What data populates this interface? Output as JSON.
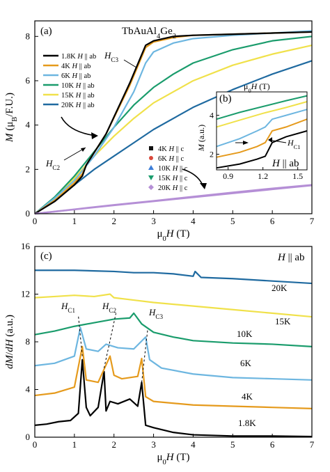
{
  "chart_data": [
    {
      "panel": "(a)",
      "type": "line",
      "title": "TbAuAl4Ge2",
      "xlabel": "μ0H (T)",
      "ylabel": "M (μB/F.U.)",
      "xlim": [
        0,
        7
      ],
      "ylim": [
        0,
        8.7
      ],
      "xticks": [
        "0",
        "1",
        "2",
        "3",
        "4",
        "5",
        "6",
        "7"
      ],
      "yticks": [
        "0",
        "2",
        "4",
        "6",
        "8"
      ],
      "legend_position": "upper-left",
      "legend_ab": [
        "1.8K H || ab",
        "4K H || ab",
        "6K H || ab",
        "10K H || ab",
        "15K H || ab",
        "20K H || ab"
      ],
      "legend_c": [
        "4K H || c",
        "6K H || c",
        "10K H || c",
        "15K H || c",
        "20K H || c"
      ],
      "annotations": [
        "HC3",
        "HC2"
      ],
      "colors": {
        "1.8K": "#000000",
        "4K": "#e59a1c",
        "6K": "#6db6e0",
        "10K": "#1a9c6c",
        "15K": "#f0e14a",
        "20K": "#1f6aa0",
        "c_series": "#b58fd6"
      },
      "series": [
        {
          "name": "1.8K H || ab",
          "x": [
            0,
            0.5,
            1.0,
            1.2,
            1.3,
            1.8,
            2.4,
            2.8,
            3.0,
            3.5,
            4,
            5,
            6,
            7
          ],
          "y": [
            0,
            0.55,
            1.3,
            1.7,
            2.2,
            3.6,
            5.9,
            7.6,
            7.8,
            8.0,
            8.05,
            8.1,
            8.15,
            8.2
          ]
        },
        {
          "name": "4K H || ab",
          "x": [
            0,
            0.5,
            1.0,
            1.2,
            1.3,
            1.8,
            2.4,
            2.8,
            3.0,
            3.5,
            4,
            5,
            6,
            7
          ],
          "y": [
            0,
            0.6,
            1.4,
            1.8,
            2.2,
            3.6,
            5.8,
            7.5,
            7.75,
            7.95,
            8.05,
            8.1,
            8.15,
            8.2
          ]
        },
        {
          "name": "6K H || ab",
          "x": [
            0,
            0.5,
            1.0,
            1.5,
            2,
            2.5,
            2.8,
            3,
            3.5,
            4,
            5,
            6,
            7
          ],
          "y": [
            0,
            0.7,
            1.5,
            2.6,
            3.9,
            5.5,
            6.8,
            7.3,
            7.7,
            7.9,
            8.05,
            8.15,
            8.25
          ]
        },
        {
          "name": "10K H || ab",
          "x": [
            0,
            0.5,
            1,
            1.5,
            2,
            2.5,
            3,
            3.5,
            4,
            5,
            6,
            7
          ],
          "y": [
            0,
            0.75,
            1.7,
            2.8,
            3.9,
            4.9,
            5.7,
            6.3,
            6.8,
            7.4,
            7.8,
            8.0
          ]
        },
        {
          "name": "15K H || ab",
          "x": [
            0,
            0.5,
            1,
            1.5,
            2,
            2.5,
            3,
            4,
            5,
            6,
            7
          ],
          "y": [
            0,
            0.7,
            1.6,
            2.6,
            3.5,
            4.3,
            5.0,
            6.0,
            6.7,
            7.2,
            7.6
          ]
        },
        {
          "name": "20K H || ab",
          "x": [
            0,
            0.5,
            1,
            1.5,
            2,
            2.5,
            3,
            4,
            5,
            6,
            7
          ],
          "y": [
            0,
            0.6,
            1.3,
            2.0,
            2.6,
            3.2,
            3.8,
            4.8,
            5.6,
            6.3,
            6.9
          ]
        },
        {
          "name": "4K H || c",
          "x": [
            0,
            1,
            2,
            3,
            4,
            5,
            6,
            7
          ],
          "y": [
            0,
            0.2,
            0.4,
            0.58,
            0.77,
            0.96,
            1.14,
            1.3
          ]
        },
        {
          "name": "20K H || c",
          "x": [
            0,
            1,
            2,
            3,
            4,
            5,
            6,
            7
          ],
          "y": [
            0,
            0.19,
            0.38,
            0.56,
            0.74,
            0.92,
            1.1,
            1.28
          ]
        }
      ],
      "inset": {
        "panel": "(b)",
        "xlabel": "μ0H (T)",
        "ylabel": "M (a.u.)",
        "label": "H || ab",
        "annotation": "HC1",
        "xticks": [
          "0.9",
          "1.2",
          "1.5"
        ],
        "yticks": [
          "2",
          "4"
        ],
        "xlim": [
          0.8,
          1.58
        ],
        "ylim": [
          1.2,
          5.2
        ],
        "series": [
          {
            "name": "1.8K",
            "x": [
              0.8,
              1.0,
              1.15,
              1.22,
              1.28,
              1.4,
              1.58
            ],
            "y": [
              1.3,
              1.5,
              1.75,
              1.9,
              2.6,
              2.9,
              3.2
            ]
          },
          {
            "name": "4K",
            "x": [
              0.8,
              1.0,
              1.15,
              1.22,
              1.28,
              1.4,
              1.58
            ],
            "y": [
              1.85,
              2.1,
              2.4,
              2.6,
              3.2,
              3.4,
              3.8
            ]
          },
          {
            "name": "6K",
            "x": [
              0.8,
              1.0,
              1.15,
              1.22,
              1.28,
              1.4,
              1.58
            ],
            "y": [
              2.4,
              2.8,
              3.2,
              3.4,
              3.8,
              4.0,
              4.3
            ]
          },
          {
            "name": "10K",
            "x": [
              0.8,
              1.0,
              1.2,
              1.4,
              1.58
            ],
            "y": [
              3.8,
              4.15,
              4.45,
              4.75,
              5.0
            ]
          },
          {
            "name": "15K",
            "x": [
              0.8,
              1.0,
              1.2,
              1.4,
              1.58
            ],
            "y": [
              3.4,
              3.75,
              4.1,
              4.4,
              4.7
            ]
          }
        ]
      }
    },
    {
      "panel": "(c)",
      "type": "line",
      "xlabel": "μ0H (T)",
      "ylabel": "dM/dH (a.u.)",
      "xlim": [
        0,
        7
      ],
      "ylim": [
        0,
        16
      ],
      "xticks": [
        "0",
        "1",
        "2",
        "3",
        "4",
        "5",
        "6",
        "7"
      ],
      "yticks": [
        "0",
        "4",
        "8",
        "12",
        "16"
      ],
      "label": "H || ab",
      "peak_labels": [
        "HC1",
        "HC2",
        "HC3"
      ],
      "series": [
        {
          "name": "1.8K",
          "x": [
            0,
            0.3,
            0.6,
            0.9,
            1.1,
            1.2,
            1.3,
            1.4,
            1.6,
            1.75,
            1.8,
            1.9,
            2.1,
            2.4,
            2.6,
            2.7,
            2.8,
            3.0,
            3.5,
            4,
            5,
            6,
            7
          ],
          "y": [
            1.0,
            1.1,
            1.3,
            1.4,
            2.0,
            6.5,
            2.5,
            1.8,
            2.5,
            5.5,
            2.2,
            3.0,
            2.8,
            3.2,
            2.6,
            4.6,
            1.0,
            0.8,
            0.4,
            0.2,
            0.1,
            0.1,
            0.05
          ]
        },
        {
          "name": "4K",
          "x": [
            0,
            0.5,
            1.0,
            1.2,
            1.3,
            1.6,
            1.9,
            2.0,
            2.2,
            2.6,
            2.7,
            2.8,
            3.0,
            4,
            5,
            6,
            7
          ],
          "y": [
            3.5,
            3.7,
            4.2,
            7.6,
            4.8,
            4.6,
            6.8,
            5.2,
            4.9,
            5.1,
            6.6,
            3.4,
            3.0,
            2.7,
            2.6,
            2.5,
            2.4
          ]
        },
        {
          "name": "6K",
          "x": [
            0,
            0.5,
            1.0,
            1.15,
            1.3,
            1.6,
            1.8,
            2.1,
            2.5,
            2.8,
            2.9,
            3.2,
            4,
            5,
            6,
            7
          ],
          "y": [
            6.0,
            6.2,
            6.8,
            9.2,
            7.4,
            7.2,
            7.8,
            7.5,
            7.4,
            8.4,
            6.5,
            5.8,
            5.3,
            5.0,
            4.9,
            4.8
          ]
        },
        {
          "name": "10K",
          "x": [
            0,
            0.5,
            1,
            1.5,
            2,
            2.4,
            2.5,
            2.7,
            3,
            3.5,
            4,
            5,
            6,
            7
          ],
          "y": [
            8.6,
            8.9,
            9.3,
            9.6,
            9.9,
            10.0,
            10.4,
            9.5,
            8.8,
            8.4,
            8.1,
            7.9,
            7.8,
            7.6
          ]
        },
        {
          "name": "15K",
          "x": [
            0,
            0.5,
            1,
            1.5,
            1.9,
            2,
            2.5,
            3,
            4,
            5,
            6,
            7
          ],
          "y": [
            11.7,
            11.8,
            11.9,
            11.8,
            12.0,
            11.7,
            11.5,
            11.3,
            11.0,
            10.7,
            10.4,
            10.1
          ]
        },
        {
          "name": "20K",
          "x": [
            0,
            0.5,
            1,
            1.5,
            2,
            2.5,
            3,
            3.5,
            4,
            4.05,
            4.2,
            5,
            6,
            7
          ],
          "y": [
            14.0,
            14.0,
            14.0,
            13.95,
            13.9,
            13.8,
            13.8,
            13.7,
            13.5,
            13.9,
            13.4,
            13.3,
            13.1,
            12.9
          ]
        }
      ],
      "curve_labels": [
        "20K",
        "15K",
        "10K",
        "6K",
        "4K",
        "1.8K"
      ],
      "colors": {
        "1.8K": "#000000",
        "4K": "#e59a1c",
        "6K": "#6db6e0",
        "10K": "#1a9c6c",
        "15K": "#f0e14a",
        "20K": "#1f6aa0"
      }
    }
  ]
}
